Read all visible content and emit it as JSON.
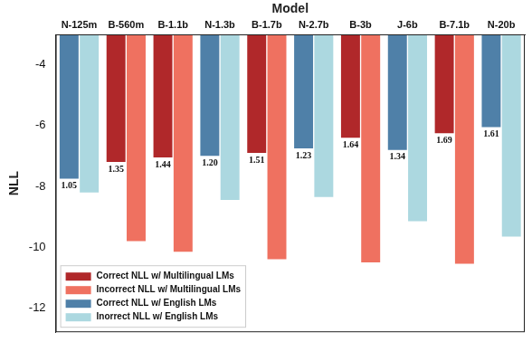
{
  "chart_data": {
    "type": "bar",
    "x_label": "Model",
    "y_label": "NLL",
    "categories": [
      "N-125m",
      "B-560m",
      "B-1.1b",
      "N-1.3b",
      "B-1.7b",
      "N-2.7b",
      "B-3b",
      "J-6b",
      "B-7.1b",
      "N-20b"
    ],
    "series": [
      {
        "name": "Correct NLL w/ Multilingual LMs",
        "color": "#b0282a",
        "values": [
          null,
          -7.2,
          -7.05,
          null,
          -6.9,
          null,
          -6.4,
          null,
          -6.25,
          null
        ]
      },
      {
        "name": "Incorrect NLL w/ Multilingual LMs",
        "color": "#ef7160",
        "values": [
          null,
          -9.8,
          -10.15,
          null,
          -10.4,
          null,
          -10.5,
          null,
          -10.55,
          null
        ]
      },
      {
        "name": "Correct NLL w/ English LMs",
        "color": "#4f80a8",
        "values": [
          -7.75,
          null,
          null,
          -7.0,
          null,
          -6.75,
          null,
          -6.8,
          null,
          -6.05
        ]
      },
      {
        "name": "Inorrect NLL w/ English LMs",
        "color": "#acd8e0",
        "values": [
          -8.2,
          null,
          null,
          -8.45,
          null,
          -8.35,
          null,
          -9.15,
          null,
          -9.65
        ]
      }
    ],
    "annotations": [
      {
        "category": "N-125m",
        "series": "Correct NLL w/ English LMs",
        "text": "1.05"
      },
      {
        "category": "B-560m",
        "series": "Correct NLL w/ Multilingual LMs",
        "text": "1.35"
      },
      {
        "category": "B-1.1b",
        "series": "Correct NLL w/ Multilingual LMs",
        "text": "1.44"
      },
      {
        "category": "N-1.3b",
        "series": "Correct NLL w/ English LMs",
        "text": "1.20"
      },
      {
        "category": "B-1.7b",
        "series": "Correct NLL w/ Multilingual LMs",
        "text": "1.51"
      },
      {
        "category": "N-2.7b",
        "series": "Correct NLL w/ English LMs",
        "text": "1.23"
      },
      {
        "category": "B-3b",
        "series": "Correct NLL w/ Multilingual LMs",
        "text": "1.64"
      },
      {
        "category": "J-6b",
        "series": "Correct NLL w/ English LMs",
        "text": "1.34"
      },
      {
        "category": "B-7.1b",
        "series": "Correct NLL w/ Multilingual LMs",
        "text": "1.69"
      },
      {
        "category": "N-20b",
        "series": "Correct NLL w/ English LMs",
        "text": "1.61"
      }
    ],
    "ylim": [
      -12.8,
      -3
    ],
    "yticks": [
      -12,
      -10,
      -8,
      -6,
      -4
    ],
    "grid": false,
    "legend": "lower left"
  }
}
